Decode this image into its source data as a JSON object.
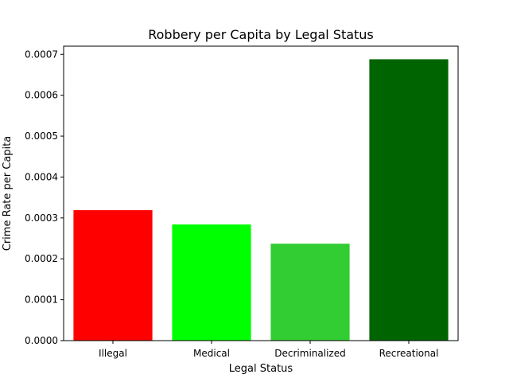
{
  "chart_data": {
    "type": "bar",
    "title": "Robbery per Capita by Legal Status",
    "xlabel": "Legal Status",
    "ylabel": "Crime Rate per Capita",
    "categories": [
      "Illegal",
      "Medical",
      "Decriminalized",
      "Recreational"
    ],
    "values": [
      0.000319,
      0.000284,
      0.000237,
      0.000688
    ],
    "colors": [
      "#ff0000",
      "#00ff00",
      "#32cd32",
      "#006400"
    ],
    "ylim": [
      0,
      0.00072
    ],
    "yticks": [
      0,
      0.0001,
      0.0002,
      0.0003,
      0.0004,
      0.0005,
      0.0006,
      0.0007
    ],
    "ytick_labels": [
      "0.0000",
      "0.0001",
      "0.0002",
      "0.0003",
      "0.0004",
      "0.0005",
      "0.0006",
      "0.0007"
    ],
    "grid": false,
    "legend": "none"
  }
}
